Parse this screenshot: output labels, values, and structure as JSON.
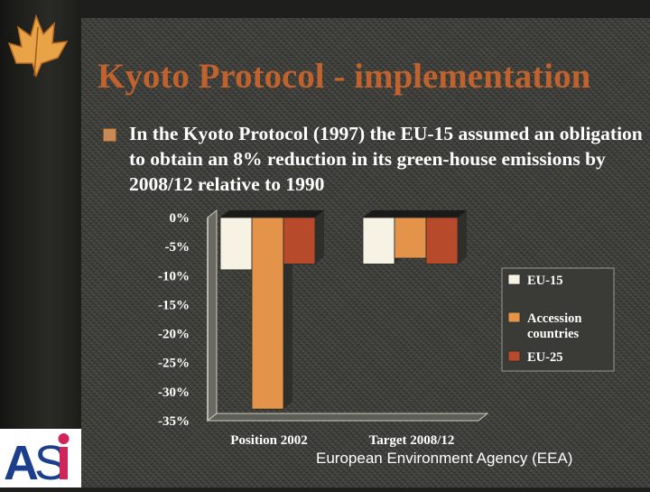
{
  "slide": {
    "title": "Kyoto Protocol - implementation",
    "bullet": "In the Kyoto Protocol (1997) the EU-15 assumed an obligation to obtain an 8% reduction in its green-house emissions by 2008/12 relative to 1990",
    "source": "European Environment Agency (EEA)",
    "logo_text": "ASI"
  },
  "colors": {
    "title": "#c0622e",
    "eu15": "#f6f3e4",
    "accession": "#e3934a",
    "eu25": "#b84a2c"
  },
  "chart_data": {
    "type": "bar",
    "categories": [
      "Position 2002",
      "Target 2008/12"
    ],
    "series": [
      {
        "name": "EU-15",
        "values": [
          -9,
          -8
        ]
      },
      {
        "name": "Accession countries",
        "values": [
          -33,
          -7
        ]
      },
      {
        "name": "EU-25",
        "values": [
          -8,
          -8
        ]
      }
    ],
    "yticks": [
      "0%",
      "-5%",
      "-10%",
      "-15%",
      "-20%",
      "-25%",
      "-30%",
      "-35%"
    ],
    "ylim": [
      -35,
      0
    ],
    "title": "",
    "xlabel": "",
    "ylabel": "",
    "grid": false,
    "legend_position": "right"
  }
}
